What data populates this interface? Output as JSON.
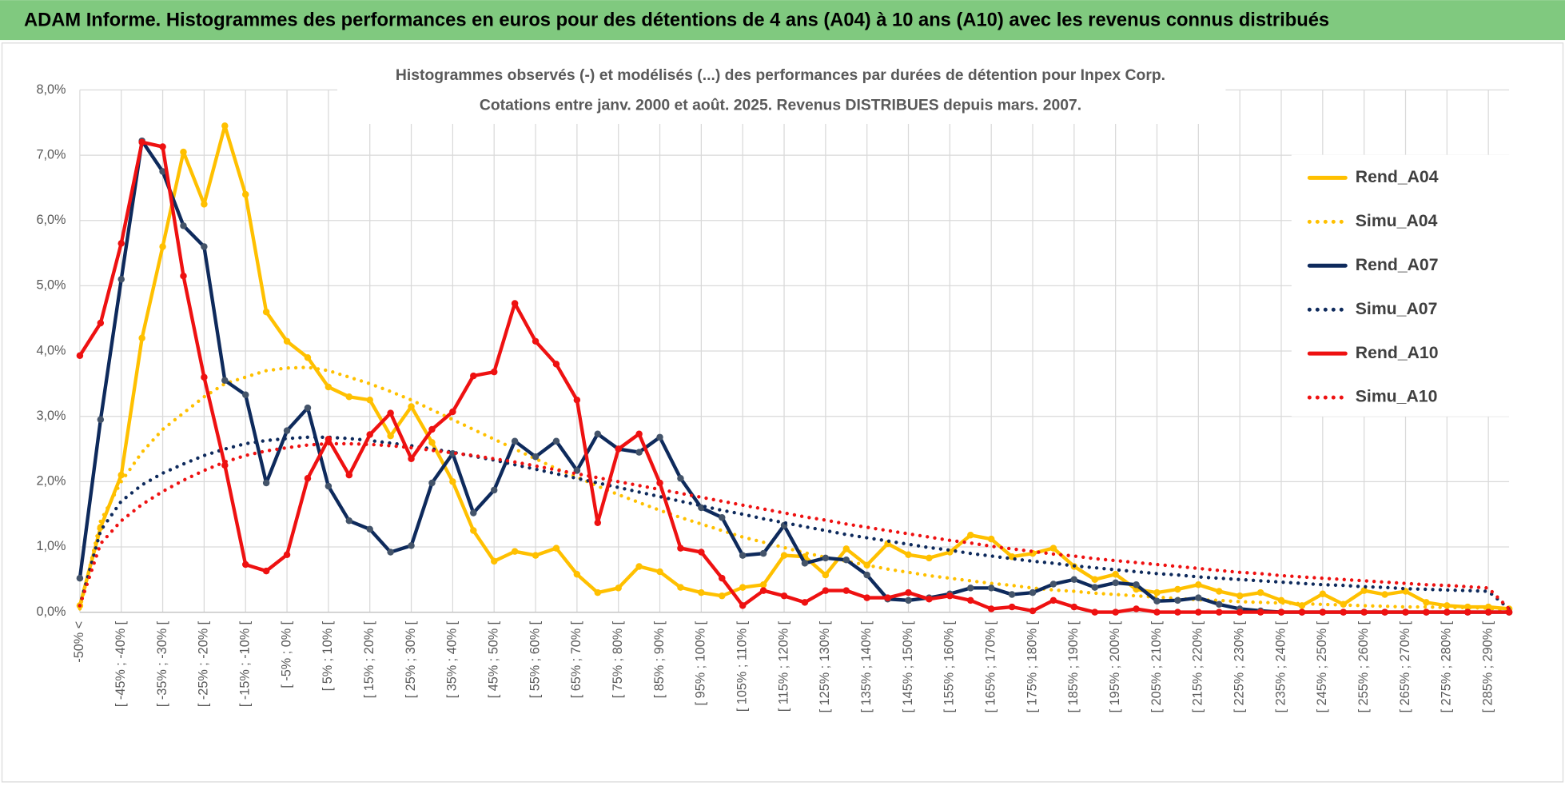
{
  "header": "ADAM Informe. Histogrammes des performances en euros pour des détentions de 4 ans (A04) à 10 ans (A10) avec les revenus connus distribués",
  "chart_data": {
    "type": "line",
    "title": "Histogrammes observés (-) et modélisés (...) des performances par durées de détention pour Inpex Corp.",
    "subtitle": "Cotations entre janv. 2000 et août. 2025. Revenus DISTRIBUES depuis mars. 2007.",
    "categories": [
      "-50% <",
      null,
      "[ -45% ; -40% [",
      null,
      "[ -35% ; -30% [",
      null,
      "[ -25% ; -20% [",
      null,
      "[ -15% ; -10% [",
      null,
      "[ -5% ; 0% [",
      null,
      "[ 5% ; 10% [",
      null,
      "[ 15% ; 20% [",
      null,
      "[ 25% ; 30% [",
      null,
      "[ 35% ; 40% [",
      null,
      "[ 45% ; 50% [",
      null,
      "[ 55% ; 60% [",
      null,
      "[ 65% ; 70% [",
      null,
      "[ 75% ; 80% [",
      null,
      "[ 85% ; 90% [",
      null,
      "[ 95% ; 100% [",
      null,
      "[ 105% ; 110% [",
      null,
      "[ 115% ; 120% [",
      null,
      "[ 125% ; 130% [",
      null,
      "[ 135% ; 140% [",
      null,
      "[ 145% ; 150% [",
      null,
      "[ 155% ; 160% [",
      null,
      "[ 165% ; 170% [",
      null,
      "[ 175% ; 180% [",
      null,
      "[ 185% ; 190% [",
      null,
      "[ 195% ; 200% [",
      null,
      "[ 205% ; 210% [",
      null,
      "[ 215% ; 220% [",
      null,
      "[ 225% ; 230% [",
      null,
      "[ 235% ; 240% [",
      null,
      "[ 245% ; 250% [",
      null,
      "[ 255% ; 260% [",
      null,
      "[ 265% ; 270% [",
      null,
      "[ 275% ; 280% [",
      null,
      "[ 285% ; 290% [",
      null
    ],
    "series": [
      {
        "name": "Rend_A04",
        "color": "#ffc000",
        "style": "solid",
        "values": [
          0.1,
          1.3,
          2.1,
          4.2,
          5.6,
          7.05,
          6.25,
          7.45,
          6.4,
          4.6,
          4.15,
          3.9,
          3.45,
          3.3,
          3.25,
          2.7,
          3.15,
          2.6,
          2.0,
          1.25,
          0.78,
          0.93,
          0.87,
          0.98,
          0.58,
          0.3,
          0.37,
          0.7,
          0.62,
          0.38,
          0.3,
          0.25,
          0.38,
          0.42,
          0.87,
          0.85,
          0.57,
          0.97,
          0.72,
          1.05,
          0.88,
          0.83,
          0.92,
          1.18,
          1.12,
          0.85,
          0.9,
          0.98,
          0.7,
          0.5,
          0.58,
          0.35,
          0.3,
          0.35,
          0.42,
          0.32,
          0.25,
          0.3,
          0.18,
          0.1,
          0.28,
          0.12,
          0.33,
          0.27,
          0.32,
          0.15,
          0.1,
          0.08,
          0.08,
          0.05
        ]
      },
      {
        "name": "Simu_A04",
        "color": "#ffc000",
        "style": "dotted",
        "values": [
          0.05,
          1.4,
          2.0,
          2.45,
          2.8,
          3.05,
          3.3,
          3.5,
          3.6,
          3.7,
          3.74,
          3.75,
          3.7,
          3.6,
          3.5,
          3.38,
          3.25,
          3.1,
          2.95,
          2.8,
          2.65,
          2.5,
          2.35,
          2.2,
          2.07,
          1.93,
          1.8,
          1.68,
          1.56,
          1.45,
          1.35,
          1.25,
          1.15,
          1.07,
          0.99,
          0.91,
          0.84,
          0.78,
          0.72,
          0.66,
          0.61,
          0.56,
          0.52,
          0.48,
          0.44,
          0.41,
          0.37,
          0.34,
          0.32,
          0.29,
          0.27,
          0.25,
          0.23,
          0.21,
          0.19,
          0.18,
          0.16,
          0.15,
          0.14,
          0.13,
          0.12,
          0.11,
          0.1,
          0.09,
          0.08,
          0.08,
          0.07,
          0.07,
          0.06,
          0.02
        ]
      },
      {
        "name": "Rend_A07",
        "color": "#0e2a5c",
        "style": "solid",
        "values": [
          0.52,
          2.95,
          5.1,
          7.22,
          6.75,
          5.92,
          5.6,
          3.55,
          3.33,
          1.98,
          2.78,
          3.13,
          1.93,
          1.4,
          1.27,
          0.92,
          1.02,
          1.98,
          2.43,
          1.52,
          1.87,
          2.62,
          2.38,
          2.62,
          2.17,
          2.73,
          2.5,
          2.45,
          2.68,
          2.05,
          1.6,
          1.45,
          0.87,
          0.9,
          1.33,
          0.75,
          0.83,
          0.8,
          0.57,
          0.2,
          0.18,
          0.22,
          0.28,
          0.37,
          0.37,
          0.27,
          0.3,
          0.43,
          0.5,
          0.38,
          0.45,
          0.42,
          0.17,
          0.18,
          0.22,
          0.12,
          0.05,
          0.02,
          0,
          0,
          0,
          0,
          0,
          0,
          0,
          0,
          0,
          0,
          0,
          0
        ]
      },
      {
        "name": "Simu_A07",
        "color": "#0e2a5c",
        "style": "dotted",
        "values": [
          0.1,
          1.25,
          1.7,
          1.95,
          2.13,
          2.27,
          2.4,
          2.5,
          2.58,
          2.63,
          2.66,
          2.68,
          2.68,
          2.66,
          2.63,
          2.59,
          2.55,
          2.5,
          2.45,
          2.39,
          2.33,
          2.26,
          2.19,
          2.12,
          2.05,
          1.98,
          1.91,
          1.84,
          1.77,
          1.7,
          1.63,
          1.56,
          1.5,
          1.43,
          1.37,
          1.31,
          1.25,
          1.19,
          1.14,
          1.09,
          1.04,
          0.99,
          0.95,
          0.9,
          0.86,
          0.82,
          0.78,
          0.75,
          0.71,
          0.68,
          0.65,
          0.62,
          0.59,
          0.57,
          0.54,
          0.52,
          0.5,
          0.48,
          0.46,
          0.44,
          0.42,
          0.41,
          0.39,
          0.38,
          0.36,
          0.35,
          0.34,
          0.33,
          0.32,
          0.05
        ]
      },
      {
        "name": "Rend_A10",
        "color": "#ee1111",
        "style": "solid",
        "values": [
          3.93,
          4.43,
          5.65,
          7.2,
          7.13,
          5.15,
          3.6,
          2.25,
          0.73,
          0.63,
          0.88,
          2.05,
          2.65,
          2.1,
          2.72,
          3.05,
          2.35,
          2.8,
          3.07,
          3.62,
          3.68,
          4.73,
          4.15,
          3.8,
          3.25,
          1.37,
          2.5,
          2.73,
          1.98,
          0.98,
          0.92,
          0.52,
          0.1,
          0.33,
          0.25,
          0.15,
          0.33,
          0.33,
          0.22,
          0.22,
          0.3,
          0.2,
          0.25,
          0.18,
          0.05,
          0.08,
          0.02,
          0.18,
          0.08,
          0,
          0,
          0.05,
          0,
          0,
          0,
          0,
          0,
          0,
          0,
          0,
          0,
          0,
          0,
          0,
          0,
          0,
          0,
          0,
          0,
          0
        ]
      },
      {
        "name": "Simu_A10",
        "color": "#ee1111",
        "style": "dotted",
        "values": [
          0.1,
          1.05,
          1.4,
          1.65,
          1.85,
          2.02,
          2.17,
          2.3,
          2.4,
          2.47,
          2.52,
          2.56,
          2.58,
          2.58,
          2.57,
          2.55,
          2.52,
          2.48,
          2.44,
          2.4,
          2.35,
          2.3,
          2.24,
          2.18,
          2.12,
          2.06,
          2.0,
          1.94,
          1.88,
          1.82,
          1.76,
          1.7,
          1.64,
          1.58,
          1.52,
          1.46,
          1.41,
          1.35,
          1.3,
          1.25,
          1.2,
          1.15,
          1.1,
          1.06,
          1.01,
          0.97,
          0.93,
          0.89,
          0.86,
          0.82,
          0.79,
          0.76,
          0.73,
          0.7,
          0.67,
          0.64,
          0.61,
          0.59,
          0.56,
          0.54,
          0.52,
          0.5,
          0.48,
          0.46,
          0.44,
          0.42,
          0.41,
          0.39,
          0.37,
          0.05
        ]
      }
    ],
    "ylim": [
      0,
      8
    ],
    "yticks": [
      {
        "value": 0,
        "label": "0,0%"
      },
      {
        "value": 1,
        "label": "1,0%"
      },
      {
        "value": 2,
        "label": "2,0%"
      },
      {
        "value": 3,
        "label": "3,0%"
      },
      {
        "value": 4,
        "label": "4,0%"
      },
      {
        "value": 5,
        "label": "5,0%"
      },
      {
        "value": 6,
        "label": "6,0%"
      },
      {
        "value": 7,
        "label": "7,0%"
      },
      {
        "value": 8,
        "label": "8,0%"
      }
    ],
    "grid": true,
    "legend": "right"
  }
}
